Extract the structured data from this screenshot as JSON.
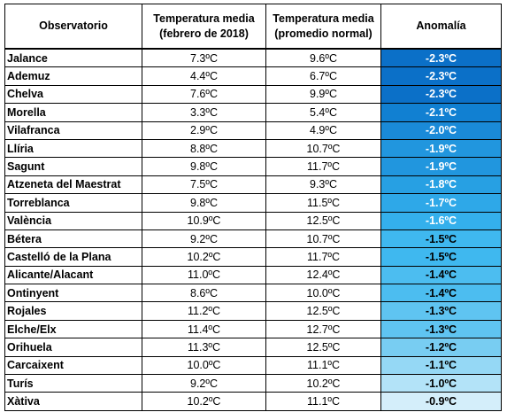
{
  "headers": {
    "observatorio": "Observatorio",
    "temp_feb_line1": "Temperatura media",
    "temp_feb_line2": "(febrero de 2018)",
    "temp_norm_line1": "Temperatura media",
    "temp_norm_line2": "(promedio normal)",
    "anomalia": "Anomalía"
  },
  "rows": [
    {
      "name": "Jalance",
      "feb": "7.3ºC",
      "normal": "9.6ºC",
      "anomaly": "-2.3ºC",
      "color": "#0b70c8"
    },
    {
      "name": "Ademuz",
      "feb": "4.4ºC",
      "normal": "6.7ºC",
      "anomaly": "-2.3ºC",
      "color": "#0b70c8"
    },
    {
      "name": "Chelva",
      "feb": "7.6ºC",
      "normal": "9.9ºC",
      "anomaly": "-2.3ºC",
      "color": "#0b70c8"
    },
    {
      "name": "Morella",
      "feb": "3.3ºC",
      "normal": "5.4ºC",
      "anomaly": "-2.1ºC",
      "color": "#1180d2"
    },
    {
      "name": "Vilafranca",
      "feb": "2.9ºC",
      "normal": "4.9ºC",
      "anomaly": "-2.0ºC",
      "color": "#1a8ad8"
    },
    {
      "name": "Llíria",
      "feb": "8.8ºC",
      "normal": "10.7ºC",
      "anomaly": "-1.9ºC",
      "color": "#2196de"
    },
    {
      "name": "Sagunt",
      "feb": "9.8ºC",
      "normal": "11.7ºC",
      "anomaly": "-1.9ºC",
      "color": "#2196de"
    },
    {
      "name": "Atzeneta del Maestrat",
      "feb": "7.5ºC",
      "normal": "9.3ºC",
      "anomaly": "-1.8ºC",
      "color": "#27a0e3"
    },
    {
      "name": "Torreblanca",
      "feb": "9.8ºC",
      "normal": "11.5ºC",
      "anomaly": "-1.7ºC",
      "color": "#2ea8e8"
    },
    {
      "name": "València",
      "feb": "10.9ºC",
      "normal": "12.5ºC",
      "anomaly": "-1.6ºC",
      "color": "#34b0ec"
    },
    {
      "name": "Bétera",
      "feb": "9.2ºC",
      "normal": "10.7ºC",
      "anomaly": "-1.5ºC",
      "color": "#3fb8ef"
    },
    {
      "name": "Castelló de la Plana",
      "feb": "10.2ºC",
      "normal": "11.7ºC",
      "anomaly": "-1.5ºC",
      "color": "#3fb8ef"
    },
    {
      "name": "Alicante/Alacant",
      "feb": "11.0ºC",
      "normal": "12.4ºC",
      "anomaly": "-1.4ºC",
      "color": "#4cbdf0"
    },
    {
      "name": "Ontinyent",
      "feb": "8.6ºC",
      "normal": "10.0ºC",
      "anomaly": "-1.4ºC",
      "color": "#4cbdf0"
    },
    {
      "name": "Rojales",
      "feb": "11.2ºC",
      "normal": "12.5ºC",
      "anomaly": "-1.3ºC",
      "color": "#5fc4f1"
    },
    {
      "name": "Elche/Elx",
      "feb": "11.4ºC",
      "normal": "12.7ºC",
      "anomaly": "-1.3ºC",
      "color": "#5fc4f1"
    },
    {
      "name": "Orihuela",
      "feb": "11.3ºC",
      "normal": "12.5ºC",
      "anomaly": "-1.2ºC",
      "color": "#78cdf2"
    },
    {
      "name": "Carcaixent",
      "feb": "10.0ºC",
      "normal": "11.1ºC",
      "anomaly": "-1.1ºC",
      "color": "#95d8f5"
    },
    {
      "name": "Turís",
      "feb": "9.2ºC",
      "normal": "10.2ºC",
      "anomaly": "-1.0ºC",
      "color": "#b3e3f8"
    },
    {
      "name": "Xàtiva",
      "feb": "10.2ºC",
      "normal": "11.1ºC",
      "anomaly": "-0.9ºC",
      "color": "#d4eefa"
    }
  ]
}
